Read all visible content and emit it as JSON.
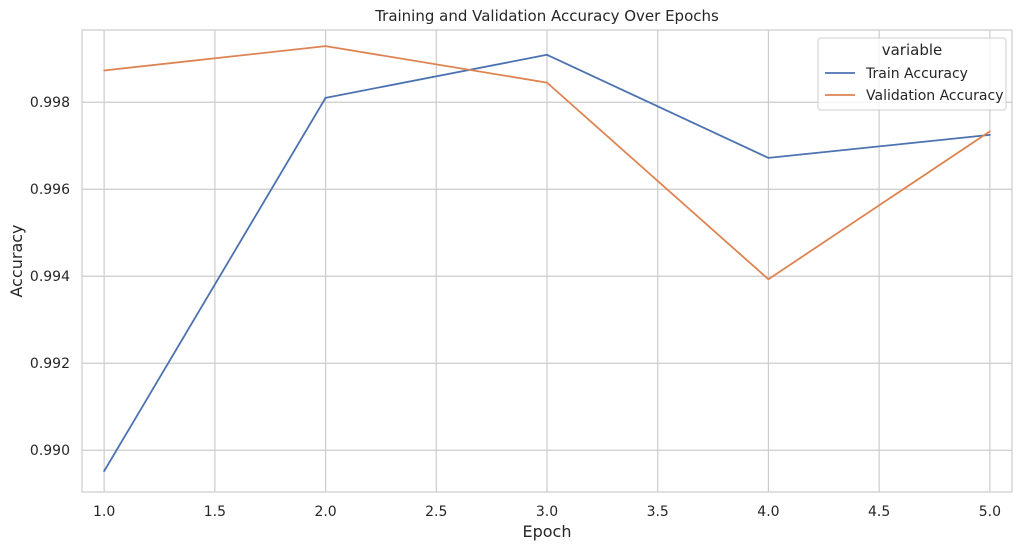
{
  "chart_data": {
    "type": "line",
    "title": "Training and Validation Accuracy Over Epochs",
    "xlabel": "Epoch",
    "ylabel": "Accuracy",
    "x": [
      1.0,
      2.0,
      3.0,
      4.0,
      5.0
    ],
    "xticks": [
      "1.0",
      "1.5",
      "2.0",
      "2.5",
      "3.0",
      "3.5",
      "4.0",
      "4.5",
      "5.0"
    ],
    "yticks": [
      "0.990",
      "0.992",
      "0.994",
      "0.996",
      "0.998"
    ],
    "xlim": [
      0.9,
      5.1
    ],
    "ylim": [
      0.98904,
      0.99966
    ],
    "grid": true,
    "legend": {
      "title": "variable",
      "placement": "top-right"
    },
    "series": [
      {
        "name": "Train Accuracy",
        "color": "#4c72b0",
        "values": [
          0.98952,
          0.9981,
          0.99909,
          0.99672,
          0.99725
        ]
      },
      {
        "name": "Validation Accuracy",
        "color": "#dd8452",
        "values": [
          0.99873,
          0.99929,
          0.99845,
          0.99393,
          0.99733
        ]
      }
    ]
  }
}
